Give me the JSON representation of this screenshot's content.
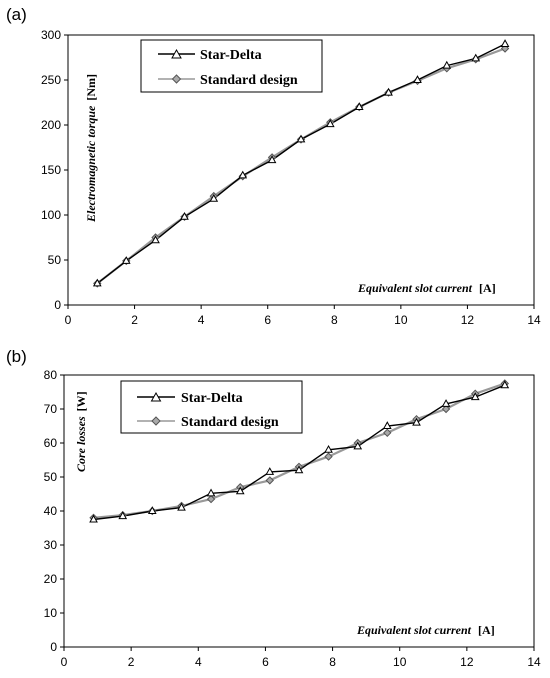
{
  "chart_data": [
    {
      "type": "line",
      "panel_label": "(a)",
      "ylabel_text": "Electromagnetic torque",
      "ylabel_unit": "[Nm]",
      "xlabel_text": "Equivalent slot current",
      "xlabel_unit": "[A]",
      "xlim": [
        0,
        14
      ],
      "ylim": [
        0,
        300
      ],
      "xticks": [
        0,
        2,
        4,
        6,
        8,
        10,
        12,
        14
      ],
      "yticks": [
        0,
        50,
        100,
        150,
        200,
        250,
        300
      ],
      "grid": false,
      "legend_position": "top-left",
      "series": [
        {
          "name": "Star-Delta",
          "color": "#000000",
          "marker": "triangle",
          "x": [
            0.88,
            1.75,
            2.63,
            3.5,
            4.38,
            5.25,
            6.13,
            7.0,
            7.88,
            8.75,
            9.63,
            10.5,
            11.38,
            12.25,
            13.13
          ],
          "y": [
            24,
            49,
            72,
            98,
            118,
            144,
            161,
            184,
            201,
            220,
            236,
            250,
            266,
            274,
            290
          ]
        },
        {
          "name": "Standard design",
          "color": "#999999",
          "marker": "diamond",
          "x": [
            0.88,
            1.75,
            2.63,
            3.5,
            4.38,
            5.25,
            6.13,
            7.0,
            7.88,
            8.75,
            9.63,
            10.5,
            11.38,
            12.25,
            13.13
          ],
          "y": [
            24,
            49,
            75,
            98,
            121,
            143,
            164,
            184,
            203,
            220,
            236,
            249,
            263,
            273,
            285
          ]
        }
      ]
    },
    {
      "type": "line",
      "panel_label": "(b)",
      "ylabel_text": "Core losses",
      "ylabel_unit": "[W]",
      "xlabel_text": "Equivalent slot current",
      "xlabel_unit": "[A]",
      "xlim": [
        0,
        14
      ],
      "ylim": [
        0,
        80
      ],
      "xticks": [
        0,
        2,
        4,
        6,
        8,
        10,
        12,
        14
      ],
      "yticks": [
        0,
        10,
        20,
        30,
        40,
        50,
        60,
        70,
        80
      ],
      "grid": false,
      "legend_position": "top-left",
      "series": [
        {
          "name": "Star-Delta",
          "color": "#000000",
          "marker": "triangle",
          "x": [
            0.88,
            1.75,
            2.63,
            3.5,
            4.38,
            5.25,
            6.13,
            7.0,
            7.88,
            8.75,
            9.63,
            10.5,
            11.38,
            12.25,
            13.13
          ],
          "y": [
            37.5,
            38.5,
            40.0,
            41.0,
            45.2,
            45.8,
            51.5,
            52.0,
            58.0,
            59.0,
            65.0,
            66.0,
            71.5,
            73.5,
            77.0
          ]
        },
        {
          "name": "Standard design",
          "color": "#999999",
          "marker": "diamond",
          "x": [
            0.88,
            1.75,
            2.63,
            3.5,
            4.38,
            5.25,
            6.13,
            7.0,
            7.88,
            8.75,
            9.63,
            10.5,
            11.38,
            12.25,
            13.13
          ],
          "y": [
            38.0,
            38.8,
            40.0,
            41.5,
            43.5,
            47.0,
            49.0,
            53.0,
            56.0,
            60.0,
            63.0,
            67.0,
            70.0,
            74.5,
            77.5
          ]
        }
      ]
    }
  ]
}
